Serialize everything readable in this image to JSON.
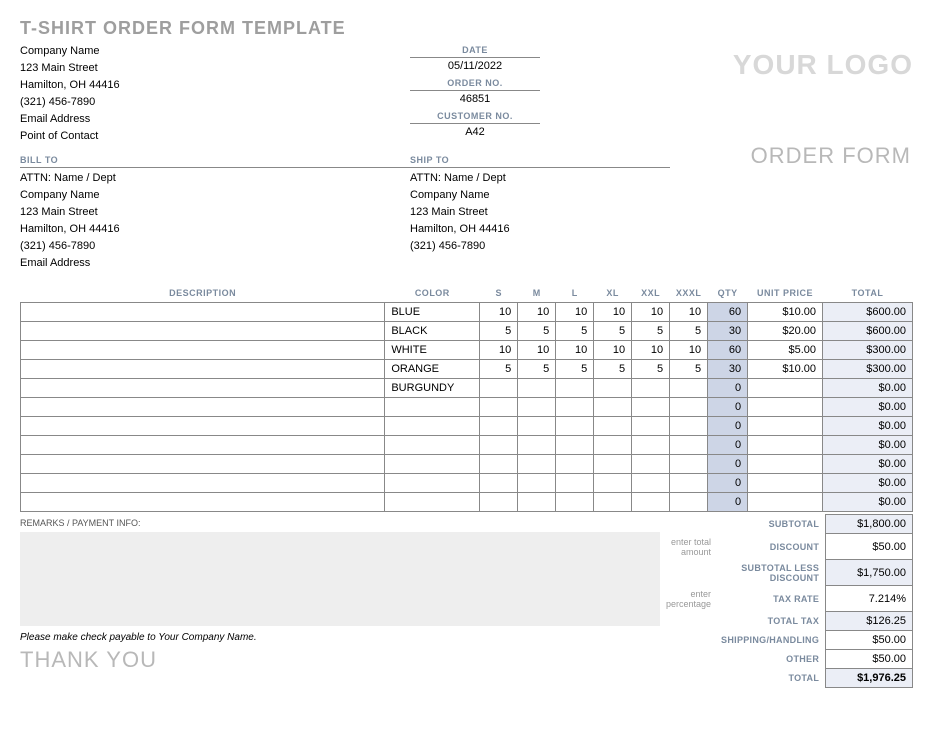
{
  "title": "T-SHIRT ORDER FORM TEMPLATE",
  "logo_text": "YOUR LOGO",
  "order_form_label": "ORDER FORM",
  "company": {
    "name": "Company Name",
    "street": "123 Main Street",
    "citystate": "Hamilton, OH 44416",
    "phone": "(321) 456-7890",
    "email": "Email Address",
    "contact": "Point of Contact"
  },
  "meta": {
    "date_label": "DATE",
    "date": "05/11/2022",
    "order_label": "ORDER NO.",
    "order_no": "46851",
    "customer_label": "CUSTOMER NO.",
    "customer_no": "A42"
  },
  "bill_to": {
    "header": "BILL TO",
    "attn": "ATTN: Name / Dept",
    "name": "Company Name",
    "street": "123 Main Street",
    "citystate": "Hamilton, OH 44416",
    "phone": "(321) 456-7890",
    "email": "Email Address"
  },
  "ship_to": {
    "header": "SHIP TO",
    "attn": "ATTN: Name / Dept",
    "name": "Company Name",
    "street": "123 Main Street",
    "citystate": "Hamilton, OH 44416",
    "phone": "(321) 456-7890"
  },
  "columns": {
    "description": "DESCRIPTION",
    "color": "COLOR",
    "s": "S",
    "m": "M",
    "l": "L",
    "xl": "XL",
    "xxl": "XXL",
    "xxxl": "XXXL",
    "qty": "QTY",
    "unit": "UNIT PRICE",
    "total": "TOTAL"
  },
  "rows": [
    {
      "desc": "",
      "color": "BLUE",
      "s": "10",
      "m": "10",
      "l": "10",
      "xl": "10",
      "xxl": "10",
      "xxxl": "10",
      "qty": "60",
      "unit": "$10.00",
      "total": "$600.00"
    },
    {
      "desc": "",
      "color": "BLACK",
      "s": "5",
      "m": "5",
      "l": "5",
      "xl": "5",
      "xxl": "5",
      "xxxl": "5",
      "qty": "30",
      "unit": "$20.00",
      "total": "$600.00"
    },
    {
      "desc": "",
      "color": "WHITE",
      "s": "10",
      "m": "10",
      "l": "10",
      "xl": "10",
      "xxl": "10",
      "xxxl": "10",
      "qty": "60",
      "unit": "$5.00",
      "total": "$300.00"
    },
    {
      "desc": "",
      "color": "ORANGE",
      "s": "5",
      "m": "5",
      "l": "5",
      "xl": "5",
      "xxl": "5",
      "xxxl": "5",
      "qty": "30",
      "unit": "$10.00",
      "total": "$300.00"
    },
    {
      "desc": "",
      "color": "BURGUNDY",
      "s": "",
      "m": "",
      "l": "",
      "xl": "",
      "xxl": "",
      "xxxl": "",
      "qty": "0",
      "unit": "",
      "total": "$0.00"
    },
    {
      "desc": "",
      "color": "",
      "s": "",
      "m": "",
      "l": "",
      "xl": "",
      "xxl": "",
      "xxxl": "",
      "qty": "0",
      "unit": "",
      "total": "$0.00"
    },
    {
      "desc": "",
      "color": "",
      "s": "",
      "m": "",
      "l": "",
      "xl": "",
      "xxl": "",
      "xxxl": "",
      "qty": "0",
      "unit": "",
      "total": "$0.00"
    },
    {
      "desc": "",
      "color": "",
      "s": "",
      "m": "",
      "l": "",
      "xl": "",
      "xxl": "",
      "xxxl": "",
      "qty": "0",
      "unit": "",
      "total": "$0.00"
    },
    {
      "desc": "",
      "color": "",
      "s": "",
      "m": "",
      "l": "",
      "xl": "",
      "xxl": "",
      "xxxl": "",
      "qty": "0",
      "unit": "",
      "total": "$0.00"
    },
    {
      "desc": "",
      "color": "",
      "s": "",
      "m": "",
      "l": "",
      "xl": "",
      "xxl": "",
      "xxxl": "",
      "qty": "0",
      "unit": "",
      "total": "$0.00"
    },
    {
      "desc": "",
      "color": "",
      "s": "",
      "m": "",
      "l": "",
      "xl": "",
      "xxl": "",
      "xxxl": "",
      "qty": "0",
      "unit": "",
      "total": "$0.00"
    }
  ],
  "remarks_header": "REMARKS / PAYMENT INFO:",
  "payable_text": "Please make check payable to Your Company Name.",
  "thanks": "THANK YOU",
  "totals": {
    "subtotal_label": "SUBTOTAL",
    "subtotal": "$1,800.00",
    "discount_hint": "enter total amount",
    "discount_label": "DISCOUNT",
    "discount": "$50.00",
    "less_label": "SUBTOTAL LESS DISCOUNT",
    "less": "$1,750.00",
    "tax_hint": "enter percentage",
    "tax_rate_label": "TAX RATE",
    "tax_rate": "7.214%",
    "total_tax_label": "TOTAL TAX",
    "total_tax": "$126.25",
    "shipping_label": "SHIPPING/HANDLING",
    "shipping": "$50.00",
    "other_label": "OTHER",
    "other": "$50.00",
    "total_label": "TOTAL",
    "total": "$1,976.25"
  },
  "col_widths": {
    "description": 365,
    "color": 95,
    "size": 38,
    "qty": 40,
    "unit": 75,
    "total": 90
  },
  "colors": {
    "grid": "#888888",
    "header_text": "#7a8a9e",
    "qty_bg": "#cdd5e6",
    "total_bg": "#ebeef6",
    "remarks_bg": "#eeeeee",
    "logo_text": "#d8d8d8",
    "muted_text": "#b8b8b8"
  }
}
